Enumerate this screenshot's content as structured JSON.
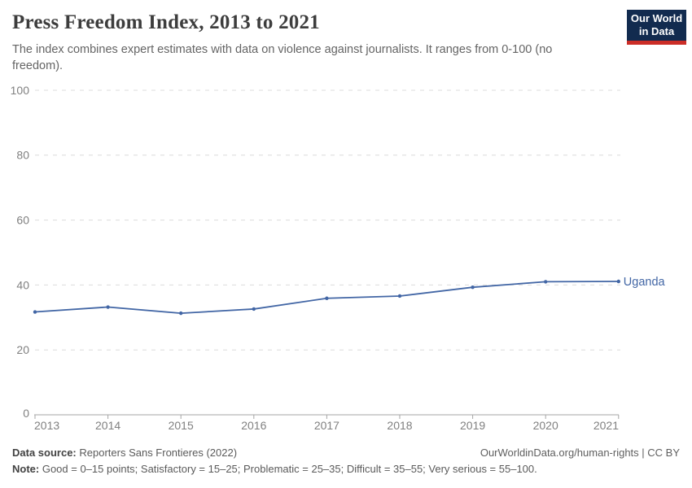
{
  "header": {
    "title": "Press Freedom Index, 2013 to 2021",
    "subtitle": "The index combines expert estimates with data on violence against journalists. It ranges from 0-100 (no freedom).",
    "logo": {
      "line1": "Our World",
      "line2": "in Data",
      "bg_color": "#122b4f",
      "accent_color": "#cb2d27"
    }
  },
  "chart_data": {
    "type": "line",
    "title": "Press Freedom Index, 2013 to 2021",
    "x": [
      2013,
      2014,
      2015,
      2016,
      2017,
      2018,
      2019,
      2020,
      2021
    ],
    "series": [
      {
        "name": "Uganda",
        "color": "#4266a5",
        "values": [
          31.7,
          33.2,
          31.3,
          32.6,
          35.9,
          36.6,
          39.3,
          41.0,
          41.1
        ]
      }
    ],
    "xlabel": "",
    "ylabel": "",
    "ylim": [
      0,
      100
    ],
    "yticks": [
      0,
      20,
      40,
      60,
      80,
      100
    ],
    "grid": "horizontal-dashed",
    "legend_position": "end-of-line",
    "colors": {
      "gridline": "#dcdcdc",
      "axis": "#a5a5a5",
      "tick_label": "#808080"
    }
  },
  "footer": {
    "data_source_label": "Data source:",
    "data_source_text": "Reporters Sans Frontieres (2022)",
    "link_text": "OurWorldinData.org/human-rights | CC BY",
    "note_label": "Note:",
    "note_text": "Good = 0–15 points; Satisfactory = 15–25; Problematic = 25–35; Difficult = 35–55; Very serious = 55–100."
  }
}
